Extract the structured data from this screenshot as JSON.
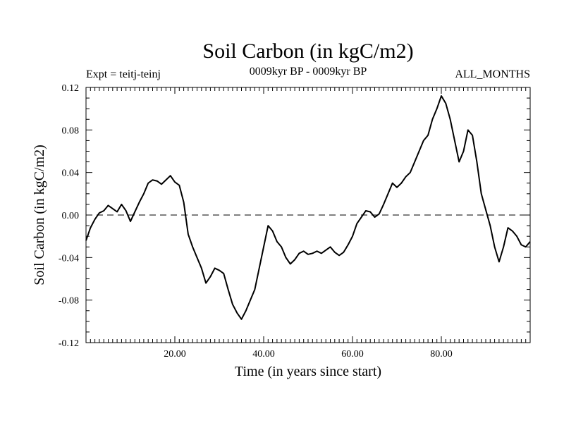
{
  "chart_data": {
    "type": "line",
    "title": "Soil Carbon (in kgC/m2)",
    "subtitle": "0009kyr BP - 0009kyr BP",
    "expt_label": "Expt = teitj-teinj",
    "months_label": "ALL_MONTHS",
    "xlabel": "Time (in years since start)",
    "ylabel": "Soil Carbon (in kgC/m2)",
    "xlim": [
      0,
      100
    ],
    "ylim": [
      -0.12,
      0.12
    ],
    "x_ticks": [
      20,
      40,
      60,
      80
    ],
    "x_tick_labels": [
      "20.00",
      "40.00",
      "60.00",
      "80.00"
    ],
    "y_ticks": [
      -0.12,
      -0.08,
      -0.04,
      0.0,
      0.04,
      0.08,
      0.12
    ],
    "y_tick_labels": [
      "-0.12",
      "-0.08",
      "-0.04",
      "0.00",
      "0.04",
      "0.08",
      "0.12"
    ],
    "zero_line": "dashed",
    "series": [
      {
        "name": "Soil Carbon",
        "color": "#000000",
        "x": [
          0,
          1,
          2,
          3,
          4,
          5,
          6,
          7,
          8,
          9,
          10,
          11,
          12,
          13,
          14,
          15,
          16,
          17,
          18,
          19,
          20,
          21,
          22,
          23,
          24,
          25,
          26,
          27,
          28,
          29,
          30,
          31,
          32,
          33,
          34,
          35,
          36,
          37,
          38,
          39,
          40,
          41,
          42,
          43,
          44,
          45,
          46,
          47,
          48,
          49,
          50,
          51,
          52,
          53,
          54,
          55,
          56,
          57,
          58,
          59,
          60,
          61,
          62,
          63,
          64,
          65,
          66,
          67,
          68,
          69,
          70,
          71,
          72,
          73,
          74,
          75,
          76,
          77,
          78,
          79,
          80,
          81,
          82,
          83,
          84,
          85,
          86,
          87,
          88,
          89,
          90,
          91,
          92,
          93,
          94,
          95,
          96,
          97,
          98,
          99,
          100
        ],
        "values": [
          -0.024,
          -0.012,
          -0.004,
          0.002,
          0.004,
          0.009,
          0.006,
          0.003,
          0.01,
          0.004,
          -0.006,
          0.003,
          0.012,
          0.02,
          0.03,
          0.033,
          0.032,
          0.029,
          0.033,
          0.037,
          0.031,
          0.028,
          0.012,
          -0.018,
          -0.03,
          -0.04,
          -0.05,
          -0.064,
          -0.058,
          -0.05,
          -0.052,
          -0.055,
          -0.07,
          -0.084,
          -0.092,
          -0.098,
          -0.09,
          -0.08,
          -0.07,
          -0.05,
          -0.03,
          -0.01,
          -0.015,
          -0.025,
          -0.03,
          -0.04,
          -0.046,
          -0.042,
          -0.036,
          -0.034,
          -0.037,
          -0.036,
          -0.034,
          -0.036,
          -0.033,
          -0.03,
          -0.035,
          -0.038,
          -0.035,
          -0.028,
          -0.02,
          -0.008,
          -0.002,
          0.004,
          0.003,
          -0.002,
          0.001,
          0.01,
          0.02,
          0.03,
          0.026,
          0.03,
          0.036,
          0.04,
          0.05,
          0.06,
          0.07,
          0.075,
          0.09,
          0.1,
          0.112,
          0.105,
          0.09,
          0.07,
          0.05,
          0.06,
          0.08,
          0.075,
          0.05,
          0.02,
          0.005,
          -0.01,
          -0.03,
          -0.044,
          -0.03,
          -0.012,
          -0.015,
          -0.02,
          -0.028,
          -0.03,
          -0.025
        ]
      }
    ]
  }
}
